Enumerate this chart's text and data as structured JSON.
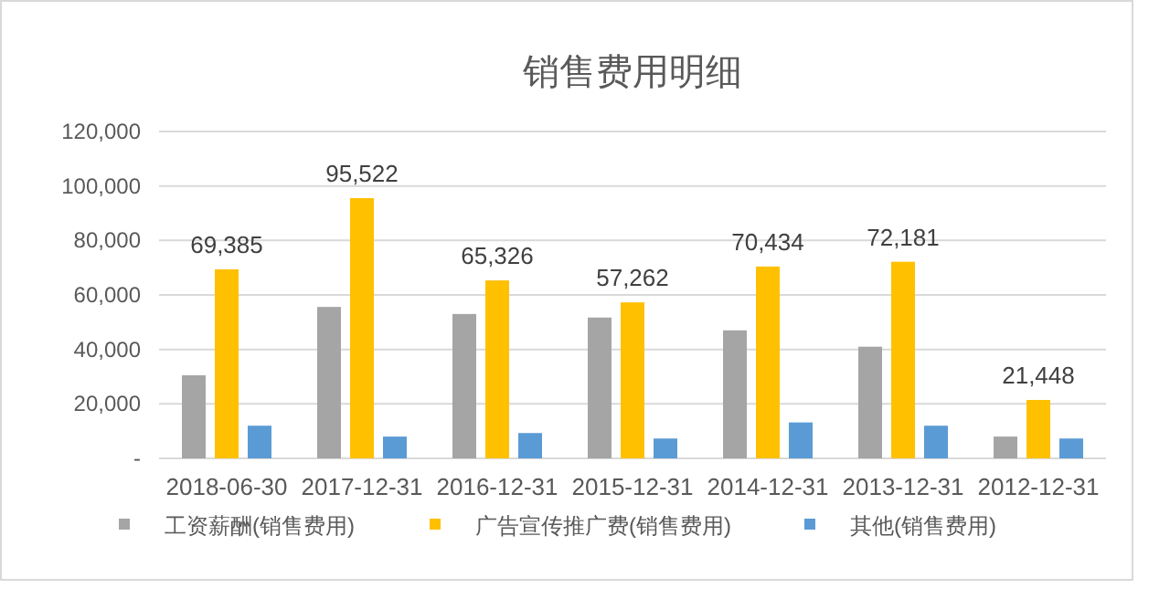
{
  "chart_data": {
    "type": "bar",
    "title": "销售费用明细",
    "categories": [
      "2018-06-30",
      "2017-12-31",
      "2016-12-31",
      "2015-12-31",
      "2014-12-31",
      "2013-12-31",
      "2012-12-31"
    ],
    "series": [
      {
        "name": "工资薪酬(销售费用)",
        "color": "#a5a5a5",
        "values": [
          30500,
          55600,
          53000,
          51700,
          47000,
          41000,
          8000
        ]
      },
      {
        "name": "广告宣传推广费(销售费用)",
        "color": "#ffc000",
        "values": [
          69385,
          95522,
          65326,
          57262,
          70434,
          72181,
          21448
        ],
        "value_labels": [
          "69,385",
          "95,522",
          "65,326",
          "57,262",
          "70,434",
          "72,181",
          "21,448"
        ]
      },
      {
        "name": "其他(销售费用)",
        "color": "#5b9bd5",
        "values": [
          12000,
          8000,
          9300,
          7300,
          13200,
          12000,
          7300
        ]
      }
    ],
    "ylim": [
      0,
      120000
    ],
    "yticks": [
      {
        "value": 0,
        "label": "-"
      },
      {
        "value": 20000,
        "label": "20,000"
      },
      {
        "value": 40000,
        "label": "40,000"
      },
      {
        "value": 60000,
        "label": "60,000"
      },
      {
        "value": 80000,
        "label": "80,000"
      },
      {
        "value": 100000,
        "label": "100,000"
      },
      {
        "value": 120000,
        "label": "120,000"
      }
    ],
    "grid": "y",
    "legend": "bottom"
  }
}
